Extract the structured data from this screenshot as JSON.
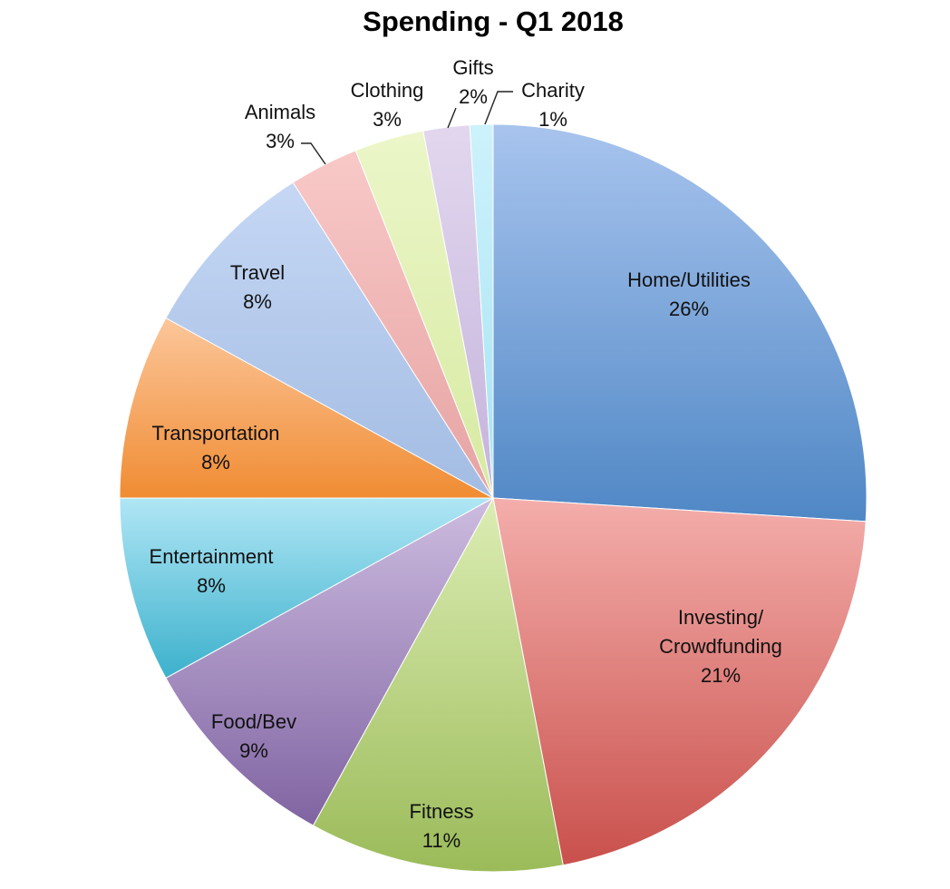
{
  "chart_data": {
    "type": "pie",
    "title": "Spending - Q1 2018",
    "slices": [
      {
        "label": "Home/Utilities",
        "value": 26,
        "pct": "26%",
        "color_light": "#a8c4ee",
        "color_dark": "#4f87c5"
      },
      {
        "label": "Investing/ Crowdfunding",
        "value": 21,
        "pct": "21%",
        "color_light": "#f4aeab",
        "color_dark": "#c9504c"
      },
      {
        "label": "Fitness",
        "value": 11,
        "pct": "11%",
        "color_light": "#dcedb4",
        "color_dark": "#9bbb59"
      },
      {
        "label": "Food/Bev",
        "value": 9,
        "pct": "9%",
        "color_light": "#cdbce0",
        "color_dark": "#8064a2"
      },
      {
        "label": "Entertainment",
        "value": 8,
        "pct": "8%",
        "color_light": "#b0e6f5",
        "color_dark": "#3cb1cc"
      },
      {
        "label": "Transportation",
        "value": 8,
        "pct": "8%",
        "color_light": "#fcc69a",
        "color_dark": "#f08c33"
      },
      {
        "label": "Travel",
        "value": 8,
        "pct": "8%",
        "color_light": "#c5d7f4",
        "color_dark": "#a3bce3"
      },
      {
        "label": "Animals",
        "value": 3,
        "pct": "3%",
        "color_light": "#f8c9c8",
        "color_dark": "#e6a3a2"
      },
      {
        "label": "Clothing",
        "value": 3,
        "pct": "3%",
        "color_light": "#ecf6c9",
        "color_dark": "#d6eaa1"
      },
      {
        "label": "Gifts",
        "value": 2,
        "pct": "2%",
        "color_light": "#e2d7ee",
        "color_dark": "#c4b3dc"
      },
      {
        "label": "Charity",
        "value": 1,
        "pct": "1%",
        "color_light": "#cdf2fb",
        "color_dark": "#a7e3f3"
      }
    ]
  }
}
